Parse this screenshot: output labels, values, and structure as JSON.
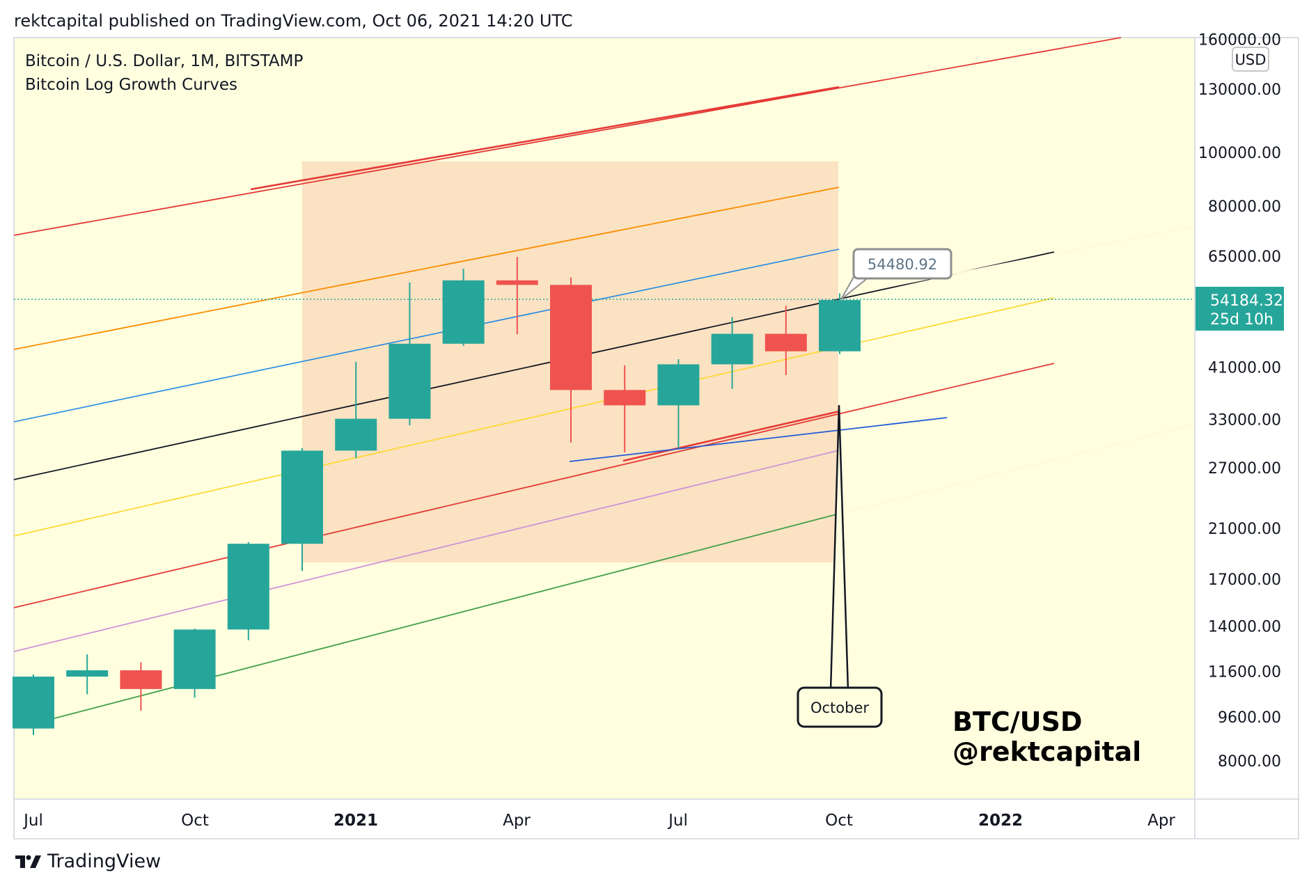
{
  "header": {
    "published": "rektcapital published on TradingView.com, Oct 06, 2021 14:20 UTC"
  },
  "legend": {
    "symbol": "Bitcoin / U.S. Dollar, 1M, BITSTAMP",
    "indicator": "Bitcoin Log Growth Curves"
  },
  "footer": {
    "brand": "TradingView"
  },
  "watermark": {
    "line1": "BTC/USD",
    "line2": "@rektcapital"
  },
  "callouts": {
    "price_label": "54480.92",
    "month_label": "October"
  },
  "price_scale": {
    "currency": "USD",
    "current_price": "54184.32",
    "countdown": "25d 10h",
    "ticks": [
      "160000.00",
      "130000.00",
      "100000.00",
      "80000.00",
      "65000.00",
      "41000.00",
      "33000.00",
      "27000.00",
      "21000.00",
      "17000.00",
      "14000.00",
      "11600.00",
      "9600.00",
      "8000.00"
    ]
  },
  "time_scale": {
    "labels": [
      "Jul",
      "Oct",
      "2021",
      "Apr",
      "Jul",
      "Oct",
      "2022",
      "Apr"
    ]
  },
  "colors": {
    "up": "#26a69a",
    "down": "#ef5350",
    "background": "#ffffe0",
    "zone": "#fbe0c0",
    "price_line": "#26a69a"
  },
  "chart_data": {
    "type": "candlestick",
    "scale": "log",
    "ylim": [
      7000,
      165000
    ],
    "x_categories": [
      "2020-07",
      "2020-08",
      "2020-09",
      "2020-10",
      "2020-11",
      "2020-12",
      "2021-01",
      "2021-02",
      "2021-03",
      "2021-04",
      "2021-05",
      "2021-06",
      "2021-07",
      "2021-08",
      "2021-09",
      "2021-10"
    ],
    "candles": [
      {
        "o": 9150,
        "h": 11450,
        "l": 8900,
        "c": 11350
      },
      {
        "o": 11350,
        "h": 12450,
        "l": 10550,
        "c": 11650
      },
      {
        "o": 11650,
        "h": 12050,
        "l": 9850,
        "c": 10780
      },
      {
        "o": 10780,
        "h": 13850,
        "l": 10400,
        "c": 13800
      },
      {
        "o": 13800,
        "h": 19850,
        "l": 13200,
        "c": 19700
      },
      {
        "o": 19700,
        "h": 29300,
        "l": 17600,
        "c": 29000
      },
      {
        "o": 29000,
        "h": 41900,
        "l": 28100,
        "c": 33100
      },
      {
        "o": 33100,
        "h": 58300,
        "l": 32200,
        "c": 45200
      },
      {
        "o": 45200,
        "h": 61700,
        "l": 44800,
        "c": 58800
      },
      {
        "o": 58800,
        "h": 64800,
        "l": 47000,
        "c": 57700
      },
      {
        "o": 57700,
        "h": 59500,
        "l": 30000,
        "c": 37300
      },
      {
        "o": 37300,
        "h": 41300,
        "l": 28800,
        "c": 35000
      },
      {
        "o": 35000,
        "h": 42400,
        "l": 29300,
        "c": 41500
      },
      {
        "o": 41500,
        "h": 50500,
        "l": 37500,
        "c": 47100
      },
      {
        "o": 47100,
        "h": 52900,
        "l": 39700,
        "c": 43800
      },
      {
        "o": 43800,
        "h": 55700,
        "l": 43300,
        "c": 54184
      }
    ],
    "annotations": [
      "54480.92",
      "October",
      "BTC/USD",
      "@rektcapital"
    ]
  }
}
